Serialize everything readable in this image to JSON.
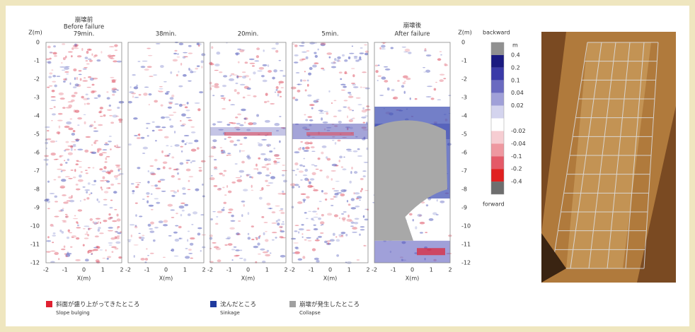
{
  "panels": [
    {
      "title_ja": "崩壊前",
      "title_en": "Before failure",
      "time": "79min."
    },
    {
      "time": "38min."
    },
    {
      "time": "20min."
    },
    {
      "time": "5min."
    },
    {
      "title_ja": "崩壊後",
      "title_en": "After failure"
    }
  ],
  "z_axis": {
    "label": "Z(m)",
    "ticks": [
      "0",
      "-1",
      "-2",
      "-3",
      "-4",
      "-5",
      "-6",
      "-7",
      "-8",
      "-9",
      "-10",
      "-11",
      "-12"
    ]
  },
  "x_axis": {
    "label": "X(m)",
    "ticks": [
      "-2",
      "-1",
      "0",
      "1",
      "2"
    ]
  },
  "colorbar": {
    "top": "backward",
    "bottom": "forward",
    "unit": "m",
    "labels": [
      "0.4",
      "0.2",
      "0.1",
      "0.04",
      "0.02",
      "-0.02",
      "-0.04",
      "-0.1",
      "-0.2",
      "-0.4"
    ]
  },
  "legend": [
    {
      "ja": "斜面が盛り上がってきたところ",
      "en": "Slope bulging"
    },
    {
      "ja": "沈んだところ",
      "en": "Sinkage"
    },
    {
      "ja": "崩壊が発生したところ",
      "en": "Collapse"
    }
  ]
}
